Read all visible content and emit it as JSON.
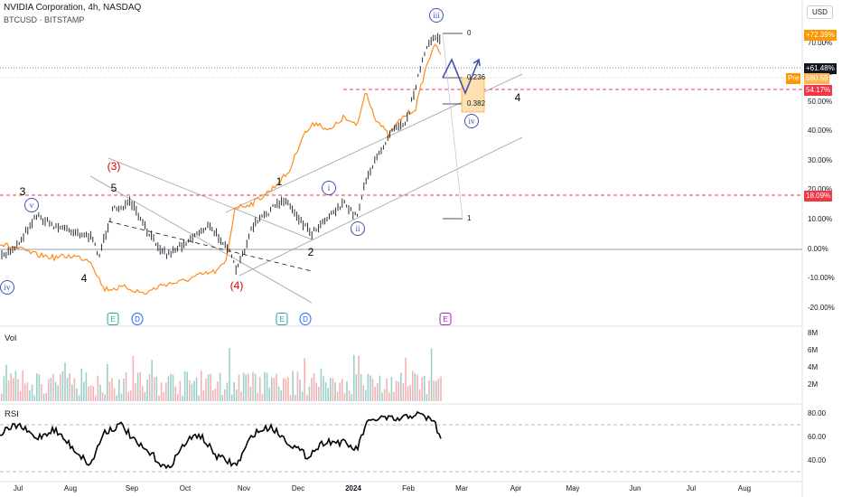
{
  "legend": {
    "title": "NVIDIA Corporation, 4h, NASDAQ",
    "compare": "BTCUSD · BITSTAMP"
  },
  "price_scale": {
    "currency": "USD",
    "ticks": [
      "70.00%",
      "60.00%",
      "50.00%",
      "40.00%",
      "30.00%",
      "20.00%",
      "10.00%",
      "0.00%",
      "-10.00%",
      "-20.00%"
    ],
    "badges": {
      "high": "+72.39%",
      "last": "+61.48%",
      "pre_tag": "Pre",
      "pre_value": "680.59",
      "level1": "54.17%",
      "level2": "18.09%"
    },
    "colors": {
      "pre": "#ff9800",
      "level": "#f23645",
      "last": "#131722"
    }
  },
  "time_axis": [
    "Jul",
    "Aug",
    "Sep",
    "Oct",
    "Nov",
    "Dec",
    "2024",
    "Feb",
    "Mar",
    "Apr",
    "May",
    "Jun",
    "Jul",
    "Aug"
  ],
  "waves": {
    "black": [
      "3",
      "5",
      "4",
      "1",
      "2",
      "4"
    ],
    "red": [
      "(3)",
      "(4)"
    ],
    "circled": [
      "v",
      "iv",
      "i",
      "ii",
      "iii",
      "iv"
    ]
  },
  "fib_levels": [
    "0",
    "0.236",
    "0.382",
    "1"
  ],
  "events": [
    "E",
    "D",
    "E",
    "D",
    "E"
  ],
  "volume": {
    "label": "Vol",
    "ticks": [
      "8M",
      "6M",
      "4M",
      "2M"
    ],
    "colors": {
      "up": "#9ed0c9",
      "down": "#f4b3b3"
    }
  },
  "rsi": {
    "label": "RSI",
    "ticks": [
      "80.00",
      "60.00",
      "40.00"
    ]
  },
  "colors": {
    "btc_line": "#ff8c1a",
    "wave_blue": "#3f51b5",
    "channel": "#9e9e9e",
    "event_green": "#26a69a",
    "event_blue": "#2962ff",
    "event_purple": "#9c27b0"
  }
}
